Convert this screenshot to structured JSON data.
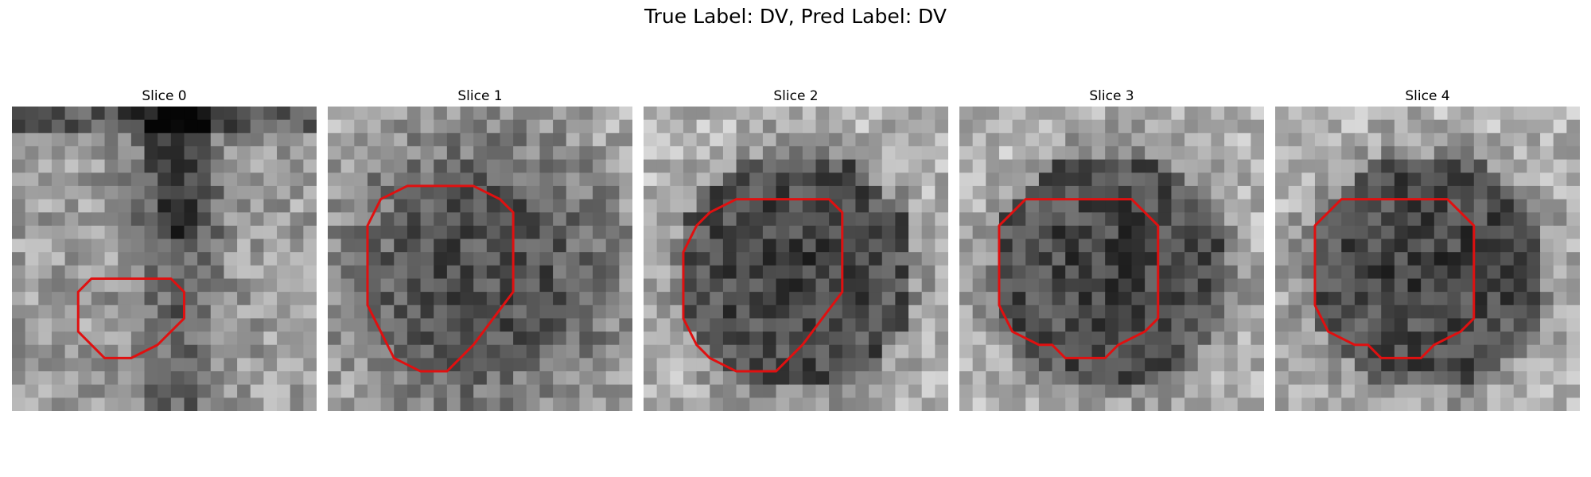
{
  "figure": {
    "suptitle": "True Label: DV, Pred Label: DV",
    "grid": false,
    "colormap": "gray",
    "contour_color": "#e01010",
    "slices": [
      {
        "title": "Slice 0",
        "seed": 11,
        "style": "vertical",
        "contour": [
          [
            10,
            13
          ],
          [
            12,
            13
          ],
          [
            13,
            14
          ],
          [
            13,
            16
          ],
          [
            11,
            18
          ],
          [
            9,
            19
          ],
          [
            7,
            19
          ],
          [
            5,
            17
          ],
          [
            5,
            14
          ],
          [
            6,
            13
          ],
          [
            8,
            13
          ]
        ]
      },
      {
        "title": "Slice 1",
        "seed": 23,
        "style": "dark",
        "contour": [
          [
            11,
            6
          ],
          [
            13,
            7
          ],
          [
            14,
            8
          ],
          [
            14,
            14
          ],
          [
            11,
            18
          ],
          [
            9,
            20
          ],
          [
            7,
            20
          ],
          [
            5,
            19
          ],
          [
            4,
            17
          ],
          [
            3,
            15
          ],
          [
            3,
            9
          ],
          [
            4,
            7
          ],
          [
            6,
            6
          ],
          [
            8,
            6
          ]
        ]
      },
      {
        "title": "Slice 2",
        "seed": 37,
        "style": "ring",
        "contour": [
          [
            12,
            7
          ],
          [
            14,
            7
          ],
          [
            15,
            8
          ],
          [
            15,
            14
          ],
          [
            12,
            18
          ],
          [
            10,
            20
          ],
          [
            7,
            20
          ],
          [
            5,
            19
          ],
          [
            4,
            18
          ],
          [
            3,
            16
          ],
          [
            3,
            11
          ],
          [
            4,
            9
          ],
          [
            5,
            8
          ],
          [
            7,
            7
          ],
          [
            10,
            7
          ]
        ]
      },
      {
        "title": "Slice 3",
        "seed": 53,
        "style": "ring",
        "contour": [
          [
            11,
            7
          ],
          [
            13,
            7
          ],
          [
            15,
            9
          ],
          [
            15,
            16
          ],
          [
            14,
            17
          ],
          [
            12,
            18
          ],
          [
            11,
            19
          ],
          [
            8,
            19
          ],
          [
            7,
            18
          ],
          [
            6,
            18
          ],
          [
            4,
            17
          ],
          [
            3,
            15
          ],
          [
            3,
            9
          ],
          [
            5,
            7
          ],
          [
            8,
            7
          ]
        ]
      },
      {
        "title": "Slice 4",
        "seed": 71,
        "style": "ring",
        "contour": [
          [
            11,
            7
          ],
          [
            13,
            7
          ],
          [
            15,
            9
          ],
          [
            15,
            16
          ],
          [
            14,
            17
          ],
          [
            12,
            18
          ],
          [
            11,
            19
          ],
          [
            8,
            19
          ],
          [
            7,
            18
          ],
          [
            6,
            18
          ],
          [
            4,
            17
          ],
          [
            3,
            15
          ],
          [
            3,
            9
          ],
          [
            5,
            7
          ],
          [
            8,
            7
          ]
        ]
      }
    ]
  }
}
